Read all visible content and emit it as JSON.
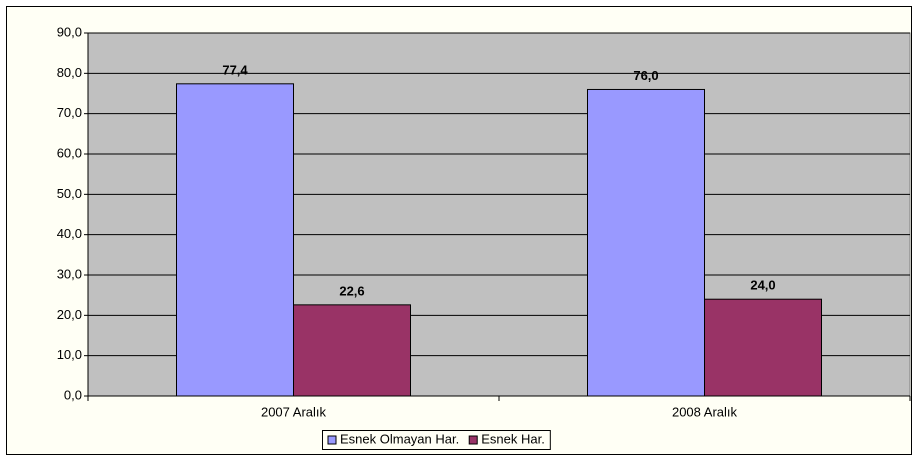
{
  "chart_data": {
    "type": "bar",
    "categories": [
      "2007 Aralık",
      "2008 Aralık"
    ],
    "series": [
      {
        "name": "Esnek Olmayan Har.",
        "color": "#9999ff",
        "values": [
          77.4,
          76.0
        ],
        "value_labels": [
          "77,4",
          "76,0"
        ]
      },
      {
        "name": "Esnek Har.",
        "color": "#993366",
        "values": [
          22.6,
          24.0
        ],
        "value_labels": [
          "22,6",
          "24,0"
        ]
      }
    ],
    "ylim": [
      0,
      90
    ],
    "yticks": [
      {
        "value": 0,
        "label": "0,0"
      },
      {
        "value": 10,
        "label": "10,0"
      },
      {
        "value": 20,
        "label": "20,0"
      },
      {
        "value": 30,
        "label": "30,0"
      },
      {
        "value": 40,
        "label": "40,0"
      },
      {
        "value": 50,
        "label": "50,0"
      },
      {
        "value": 60,
        "label": "60,0"
      },
      {
        "value": 70,
        "label": "70,0"
      },
      {
        "value": 80,
        "label": "80,0"
      },
      {
        "value": 90,
        "label": "90,0"
      }
    ],
    "grid": true,
    "legend": "bottom",
    "plot_background": "#c0c0c0"
  }
}
